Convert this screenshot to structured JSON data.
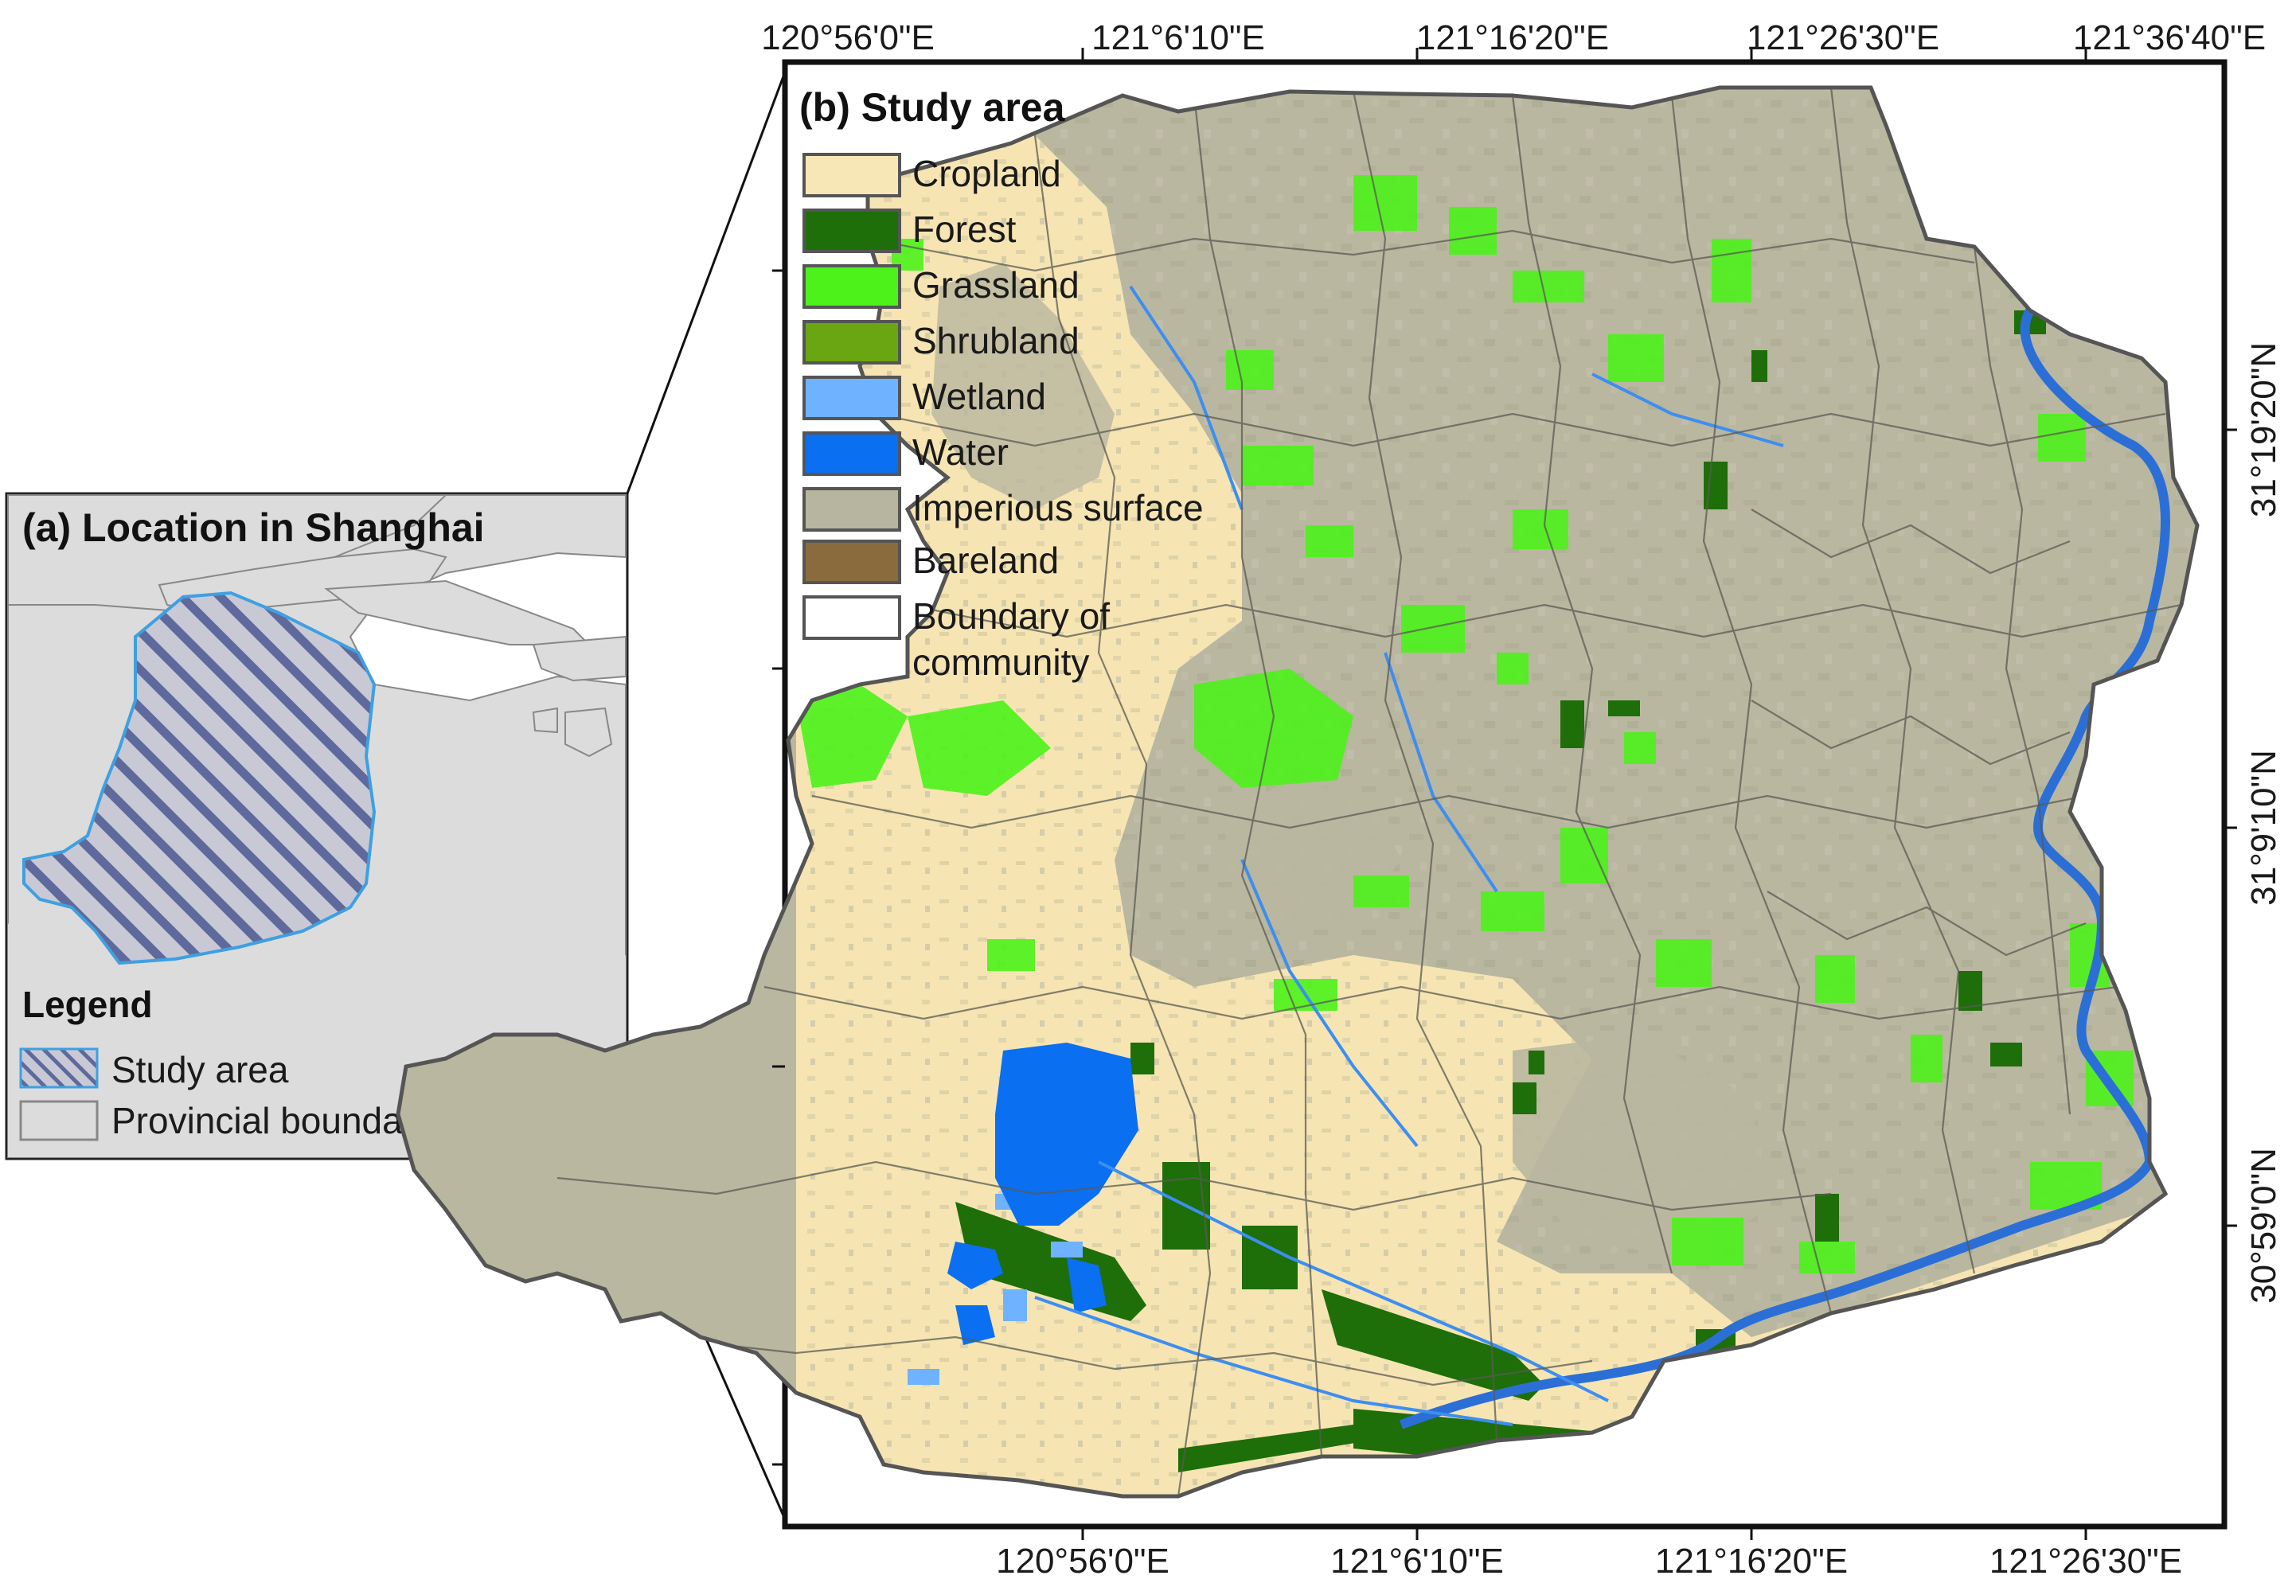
{
  "panel_a": {
    "title": "(a) Location in Shanghai",
    "legend_title": "Legend",
    "legend_items": [
      {
        "label": "Study area"
      },
      {
        "label": "Provincial boundary"
      }
    ]
  },
  "panel_b": {
    "title": "(b) Study area",
    "top_ticks": [
      "120°56'0\"E",
      "121°6'10\"E",
      "121°16'20\"E",
      "121°26'30\"E",
      "121°36'40\"E"
    ],
    "bottom_ticks": [
      "120°56'0\"E",
      "121°6'10\"E",
      "121°16'20\"E",
      "121°26'30\"E"
    ],
    "right_ticks": [
      "31°19'20\"N",
      "31°9'10\"N",
      "30°59'0\"N"
    ],
    "legend_items": [
      {
        "label": "Cropland",
        "color": "#f8e7b6"
      },
      {
        "label": "Forest",
        "color": "#1e6e0a"
      },
      {
        "label": "Grassland",
        "color": "#4cf21a"
      },
      {
        "label": "Shrubland",
        "color": "#6aa512"
      },
      {
        "label": "Wetland",
        "color": "#6fb2ff"
      },
      {
        "label": "Water",
        "color": "#0a6ff0"
      },
      {
        "label": "Imperious surface",
        "color": "#b7b59f"
      },
      {
        "label": "Bareland",
        "color": "#8a6b3d"
      },
      {
        "label": "Boundary of community",
        "label_lines": [
          "Boundary of",
          "community"
        ],
        "color": "#ffffff"
      }
    ]
  }
}
